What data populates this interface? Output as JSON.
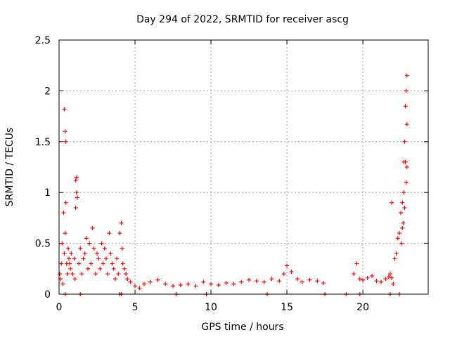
{
  "chart_data": {
    "type": "scatter",
    "title": "Day 294 of 2022, SRMTID for receiver ascg",
    "xlabel": "GPS time / hours",
    "ylabel": "SRMTID / TECUs",
    "xlim": [
      0,
      24.3
    ],
    "ylim": [
      0,
      2.5
    ],
    "grid": true,
    "xticks": [
      0,
      5,
      10,
      15,
      20
    ],
    "yticks": [
      0,
      0.5,
      1,
      1.5,
      2,
      2.5
    ],
    "xtick_labels": [
      "0",
      "5",
      "10",
      "15",
      "20"
    ],
    "ytick_labels": [
      "0",
      "0.5",
      "1",
      "1.5",
      "2",
      "2.5"
    ],
    "series": [
      {
        "name": "SRMTID",
        "color": "#ff0000",
        "marker": "plus",
        "x": [
          0.05,
          0.1,
          0.15,
          0.2,
          0.25,
          0.3,
          0.35,
          0.4,
          0.45,
          0.5,
          0.55,
          0.6,
          0.65,
          0.7,
          0.75,
          0.8,
          0.9,
          1.0,
          1.05,
          1.1,
          1.15,
          1.2,
          1.3,
          1.4,
          1.5,
          1.6,
          1.7,
          1.8,
          1.9,
          2.0,
          2.1,
          2.2,
          2.3,
          2.4,
          2.5,
          2.6,
          2.7,
          2.8,
          2.9,
          3.0,
          3.1,
          3.2,
          3.3,
          3.4,
          3.5,
          3.6,
          3.7,
          3.8,
          3.9,
          4.0,
          4.1,
          4.15,
          4.2,
          4.3,
          4.4,
          4.5,
          4.7,
          5.0,
          5.3,
          5.6,
          6.0,
          6.5,
          7.0,
          7.5,
          8.0,
          8.5,
          9.0,
          9.5,
          10.0,
          10.5,
          11.0,
          11.5,
          12.0,
          12.5,
          13.0,
          13.5,
          14.0,
          14.5,
          14.8,
          15.0,
          15.3,
          15.7,
          16.0,
          16.5,
          17.0,
          17.4,
          19.4,
          19.6,
          19.8,
          20.0,
          20.3,
          20.6,
          20.9,
          21.2,
          21.5,
          21.7,
          21.8,
          21.9,
          22.0,
          22.1,
          22.2,
          22.3,
          22.4,
          22.5,
          22.55,
          22.6,
          22.65,
          22.7,
          22.75,
          22.8,
          22.85,
          22.9,
          0.35,
          0.4,
          0.45,
          1.1,
          1.15,
          1.2,
          22.7,
          22.75,
          22.8,
          22.85,
          22.9,
          22.9,
          21.9,
          22.6,
          0.4,
          1.4,
          4.0,
          4.1,
          7.7,
          9.7,
          13.7,
          17.5,
          18.9,
          19.8,
          21.8,
          22.4
        ],
        "y": [
          0.2,
          0.15,
          0.3,
          0.5,
          0.1,
          0.8,
          0.4,
          0.6,
          0.9,
          0.3,
          0.2,
          0.45,
          0.35,
          0.3,
          0.25,
          0.4,
          0.2,
          0.35,
          0.15,
          0.85,
          1.0,
          0.95,
          0.3,
          0.45,
          0.2,
          0.35,
          0.4,
          0.55,
          0.25,
          0.5,
          0.3,
          0.65,
          0.45,
          0.2,
          0.4,
          0.35,
          0.25,
          0.5,
          0.3,
          0.45,
          0.35,
          0.2,
          0.6,
          0.4,
          0.3,
          0.25,
          0.15,
          0.35,
          0.2,
          0.6,
          0.7,
          0.45,
          0.3,
          0.25,
          0.2,
          0.15,
          0.12,
          0.08,
          0.06,
          0.1,
          0.12,
          0.14,
          0.1,
          0.08,
          0.09,
          0.1,
          0.08,
          0.12,
          0.1,
          0.09,
          0.11,
          0.1,
          0.12,
          0.14,
          0.13,
          0.12,
          0.15,
          0.13,
          0.2,
          0.28,
          0.22,
          0.15,
          0.12,
          0.14,
          0.13,
          0.11,
          0.2,
          0.3,
          0.15,
          0.14,
          0.16,
          0.18,
          0.13,
          0.12,
          0.15,
          0.17,
          0.2,
          0.16,
          0.1,
          0.35,
          0.4,
          0.55,
          0.6,
          0.8,
          0.5,
          0.9,
          0.7,
          1.0,
          0.85,
          1.3,
          1.1,
          1.25,
          1.82,
          1.6,
          1.5,
          1.12,
          1.15,
          0.95,
          1.3,
          1.5,
          1.85,
          2.0,
          2.15,
          1.67,
          0.9,
          0.65,
          0.0,
          0.0,
          0.0,
          0.0,
          0.0,
          0.0,
          0.0,
          0.0,
          0.0,
          0.0,
          0.0,
          0.0
        ]
      }
    ]
  }
}
